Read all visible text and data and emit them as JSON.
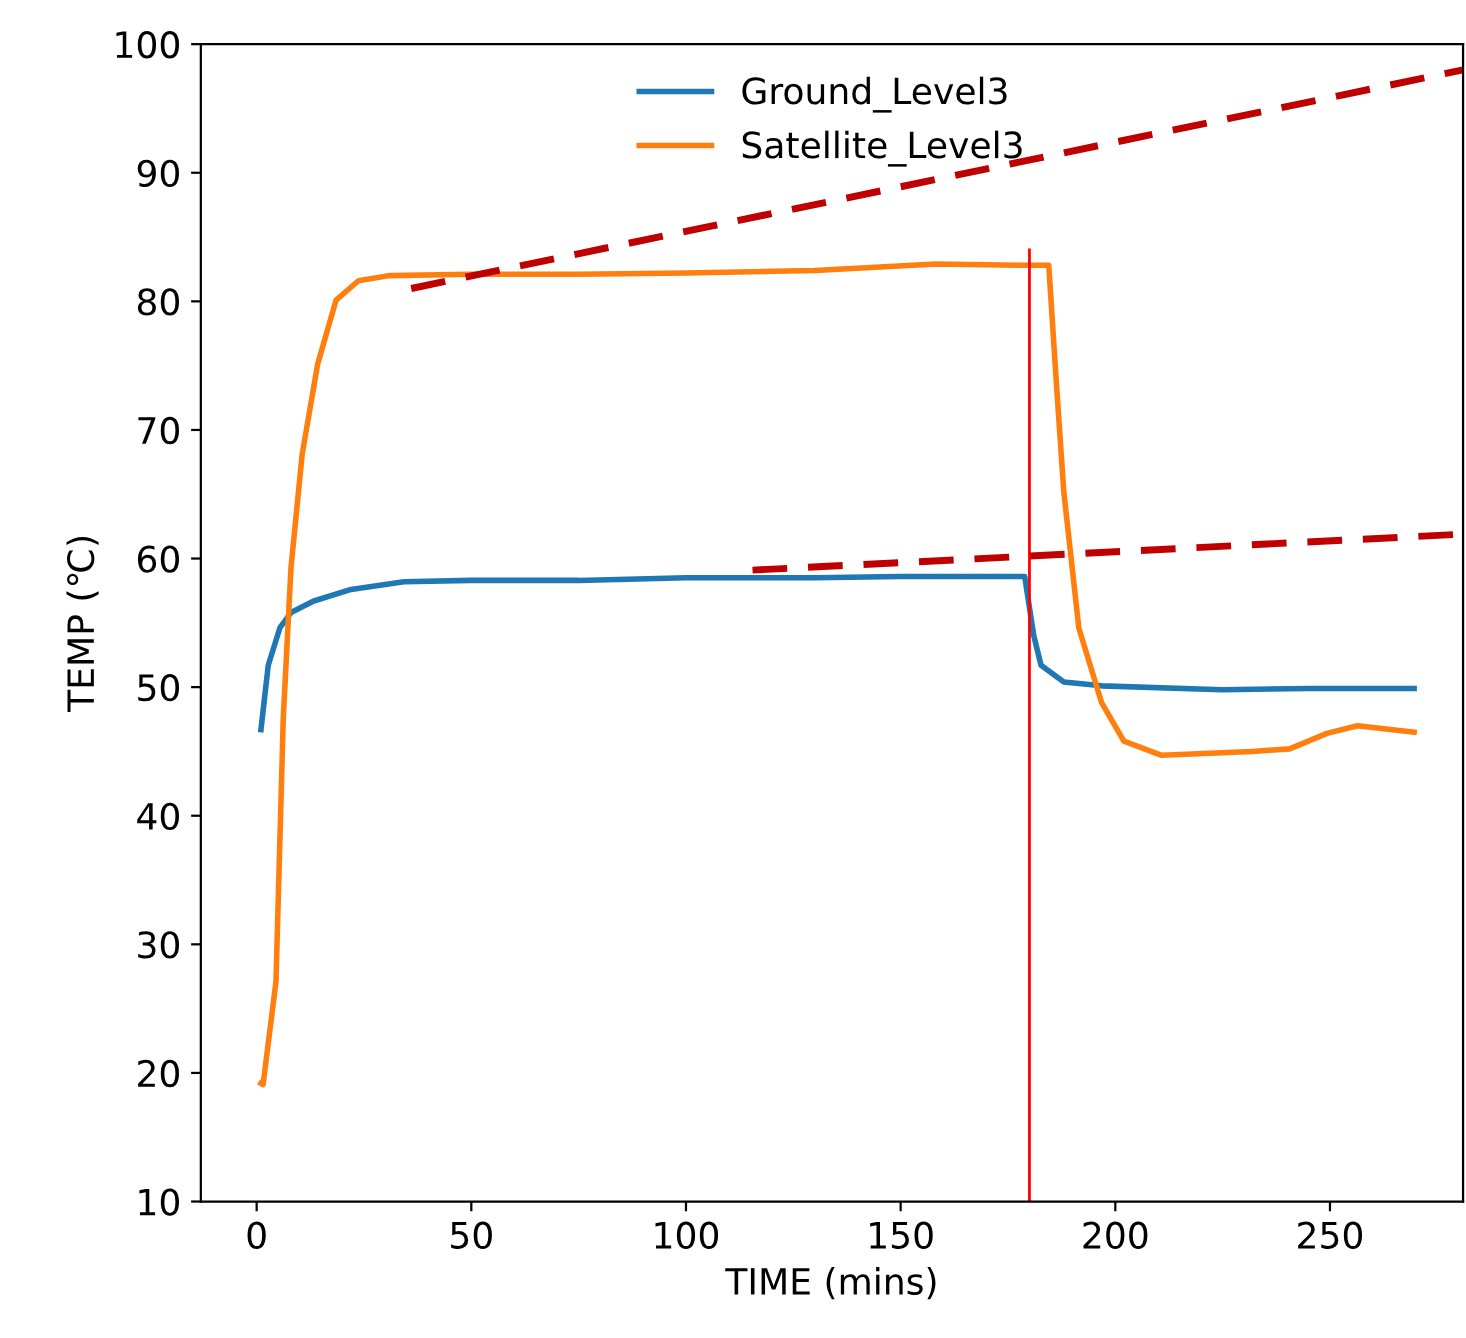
{
  "chart_data": {
    "type": "line",
    "xlabel": "TIME (mins)",
    "ylabel": "TEMP (℃)",
    "xlim": [
      -13,
      281
    ],
    "ylim": [
      10,
      100
    ],
    "xticks": [
      0,
      50,
      100,
      150,
      200,
      250
    ],
    "yticks": [
      10,
      20,
      30,
      40,
      50,
      60,
      70,
      80,
      90,
      100
    ],
    "grid": false,
    "legend": "top",
    "line_style": "solid",
    "series": [
      {
        "name": "Ground_Level3",
        "color": "#1f77b4",
        "x": [
          1,
          2.7,
          5.4,
          8,
          13.3,
          22,
          34.3,
          50,
          75,
          100,
          130,
          150,
          170,
          178.9,
          181,
          182.7,
          188,
          196.8,
          224.8,
          245,
          269.6
        ],
        "values": [
          46.7,
          51.7,
          54.6,
          55.8,
          56.7,
          57.6,
          58.2,
          58.3,
          58.3,
          58.5,
          58.5,
          58.6,
          58.6,
          58.6,
          54.0,
          51.7,
          50.4,
          50.1,
          49.8,
          49.9,
          49.9
        ]
      },
      {
        "name": "Satellite_Level3",
        "color": "#ff7f0e",
        "x": [
          1,
          1.5,
          4.5,
          6.2,
          8,
          10.6,
          14.2,
          18.5,
          23.7,
          30.8,
          50,
          75,
          100,
          130,
          158.2,
          178,
          184.5,
          186.2,
          188,
          191.5,
          196.8,
          202,
          210.8,
          231.8,
          240.6,
          249.3,
          256.4,
          269.6
        ],
        "values": [
          19.2,
          19.1,
          27.1,
          47.6,
          59.3,
          68.1,
          75.1,
          80.1,
          81.6,
          82.0,
          82.1,
          82.1,
          82.2,
          82.4,
          82.9,
          82.8,
          82.8,
          74.0,
          65.2,
          54.6,
          48.8,
          45.8,
          44.7,
          45.0,
          45.2,
          46.4,
          47.0,
          46.5
        ]
      },
      {
        "color": "#ff0000",
        "x": [
          180,
          180
        ],
        "values": [
          10,
          84
        ]
      },
      {
        "color": "#c00000",
        "x": [
          36,
          281
        ],
        "values": [
          81.0,
          98.0
        ],
        "line_style": "dashed"
      },
      {
        "color": "#c00000",
        "x": [
          115.5,
          281
        ],
        "values": [
          59.1,
          61.9
        ],
        "line_style": "dashed"
      }
    ]
  }
}
